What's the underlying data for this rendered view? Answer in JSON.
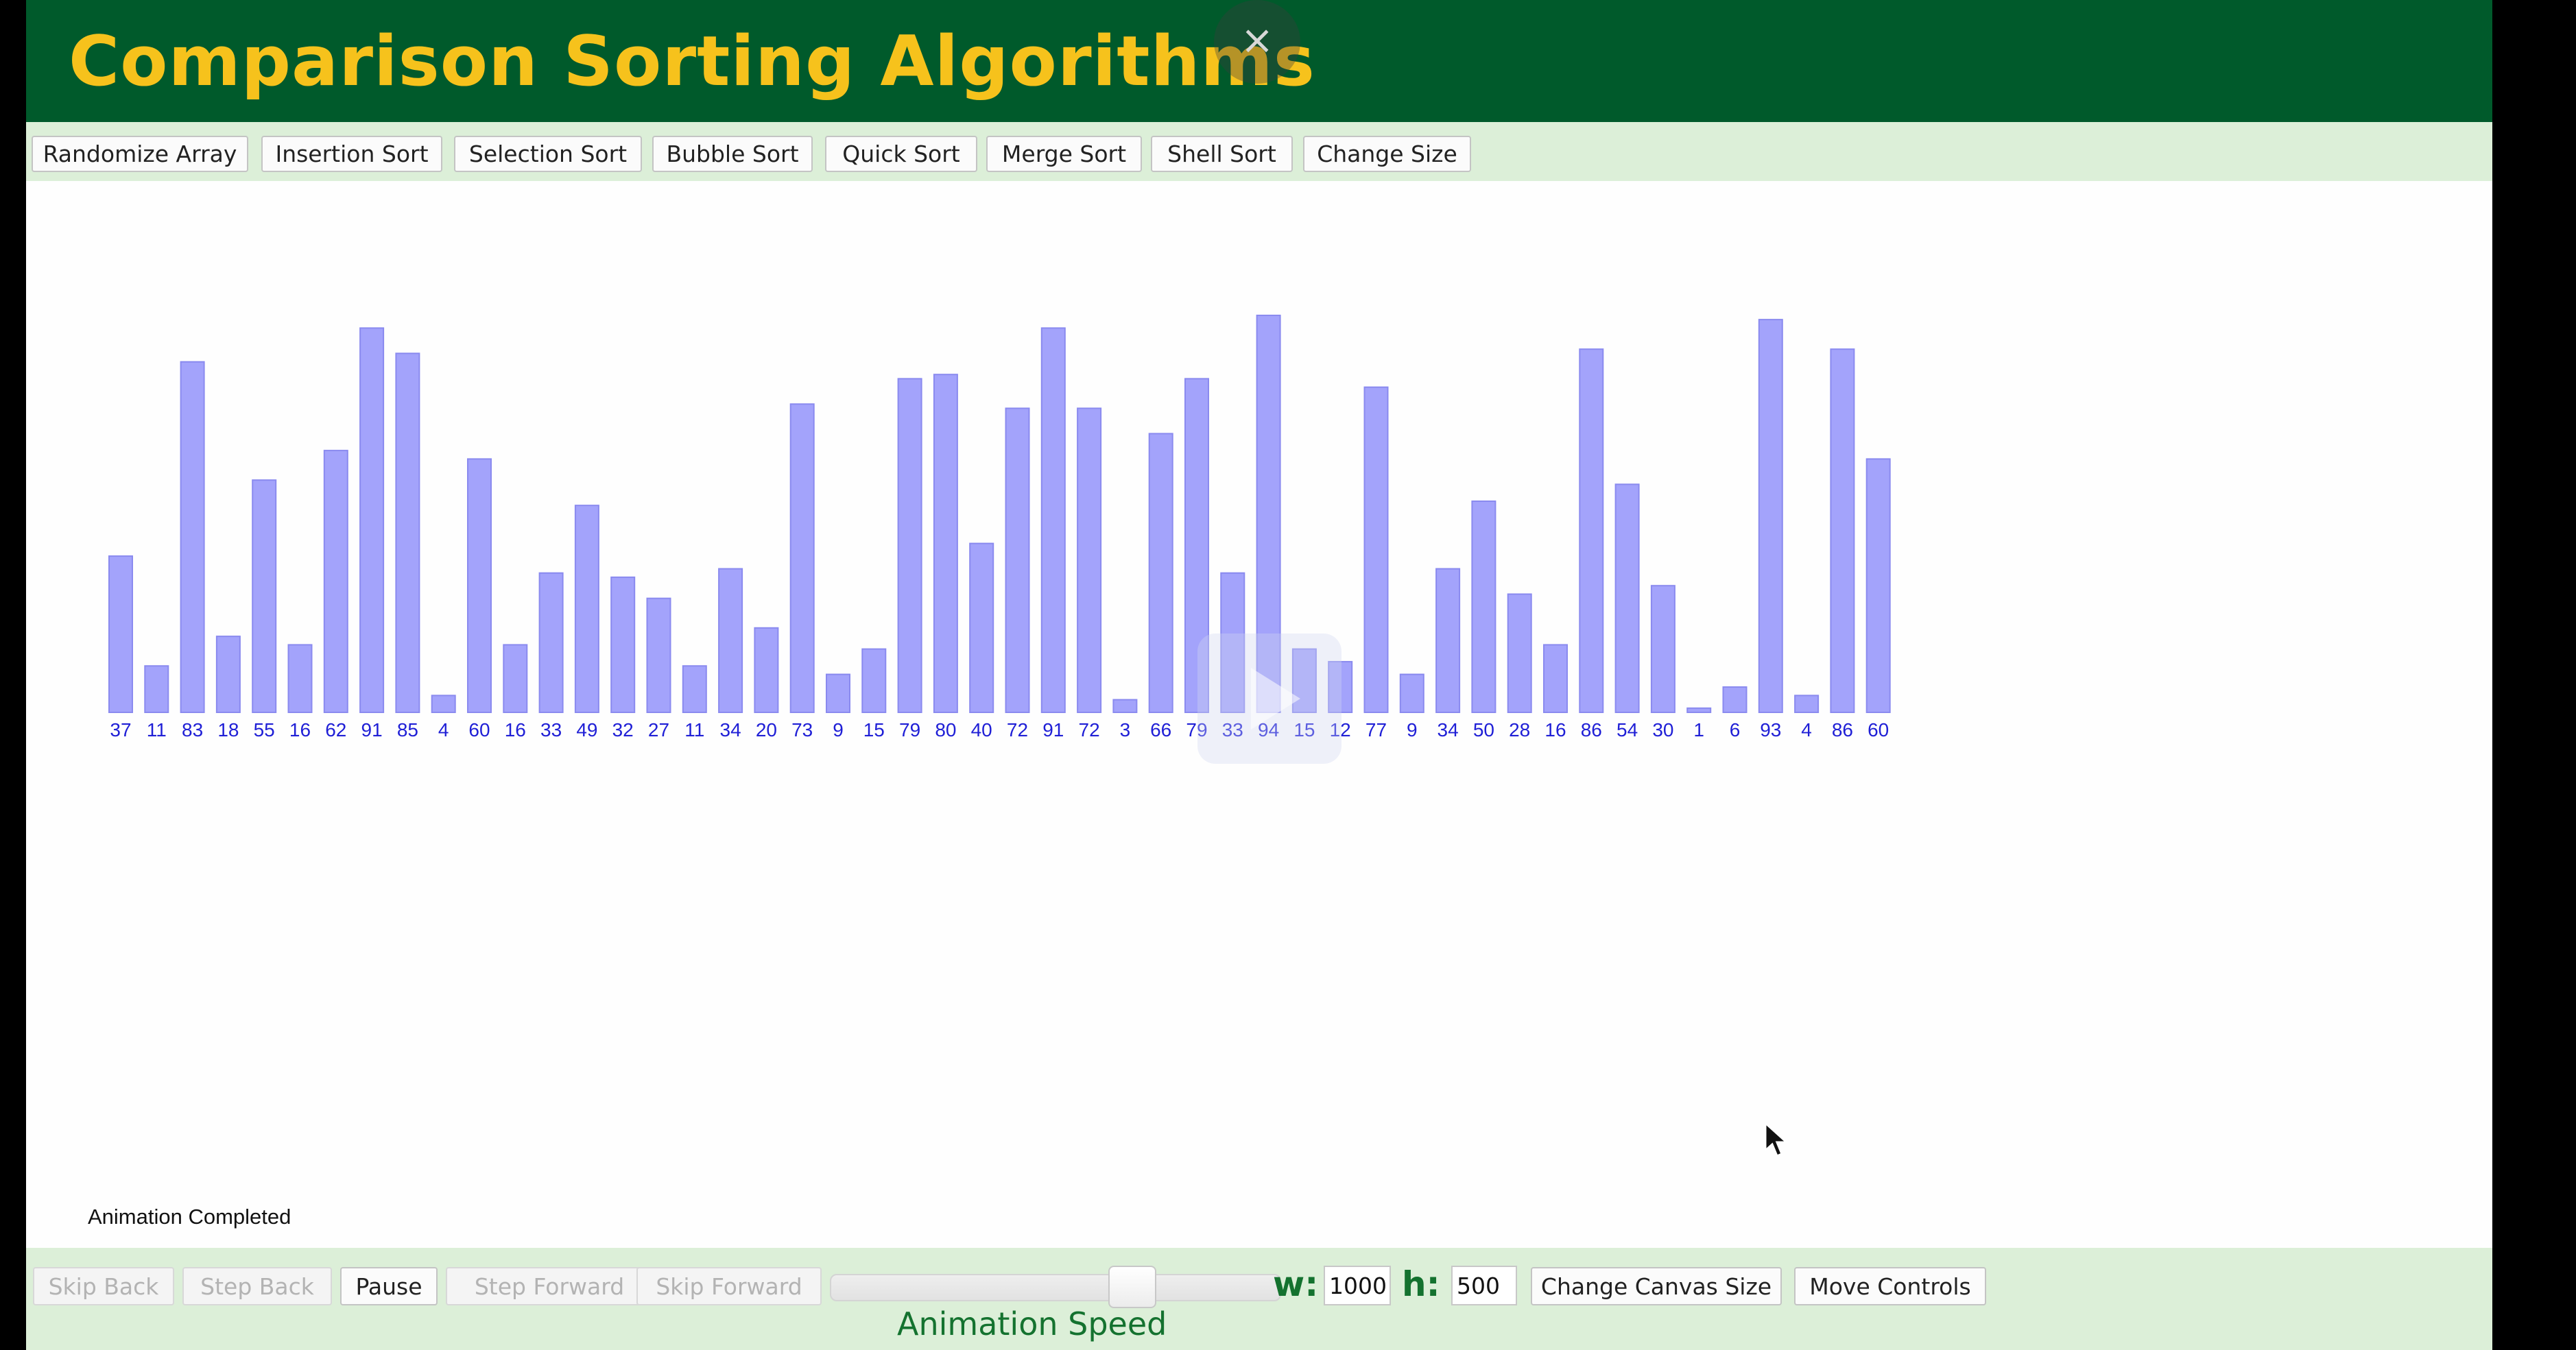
{
  "header": {
    "title": "Comparison Sorting Algorithms",
    "close_glyph": "×"
  },
  "toolbar": {
    "buttons": [
      "Randomize Array",
      "Insertion Sort",
      "Selection Sort",
      "Bubble Sort",
      "Quick Sort",
      "Merge Sort",
      "Shell Sort",
      "Change Size"
    ]
  },
  "chart_data": {
    "type": "bar",
    "values": [
      37,
      11,
      83,
      18,
      55,
      16,
      62,
      91,
      85,
      4,
      60,
      16,
      33,
      49,
      32,
      27,
      11,
      34,
      20,
      73,
      9,
      15,
      79,
      80,
      40,
      72,
      91,
      72,
      3,
      66,
      79,
      33,
      94,
      15,
      12,
      77,
      9,
      34,
      50,
      28,
      16,
      86,
      54,
      30,
      1,
      6,
      93,
      4,
      86,
      60
    ],
    "ylim": [
      0,
      100
    ],
    "bar_color": "#a3a3fb",
    "bar_border": "#8a8aef",
    "label_color": "#1f1fd6"
  },
  "status": {
    "message": "Animation Completed"
  },
  "controls": {
    "skip_back": "Skip Back",
    "step_back": "Step Back",
    "pause": "Pause",
    "step_forward": "Step Forward",
    "skip_forward": "Skip Forward",
    "speed_label": "Animation Speed",
    "speed_value": 0.7,
    "w_label": "w:",
    "w_value": "1000",
    "h_label": "h:",
    "h_value": "500",
    "change_canvas": "Change Canvas Size",
    "move_controls": "Move Controls"
  },
  "colors": {
    "header_bg": "#005a2b",
    "title_color": "#f6c21c",
    "toolbar_bg": "#dcefd8",
    "label_green": "#14722f"
  }
}
